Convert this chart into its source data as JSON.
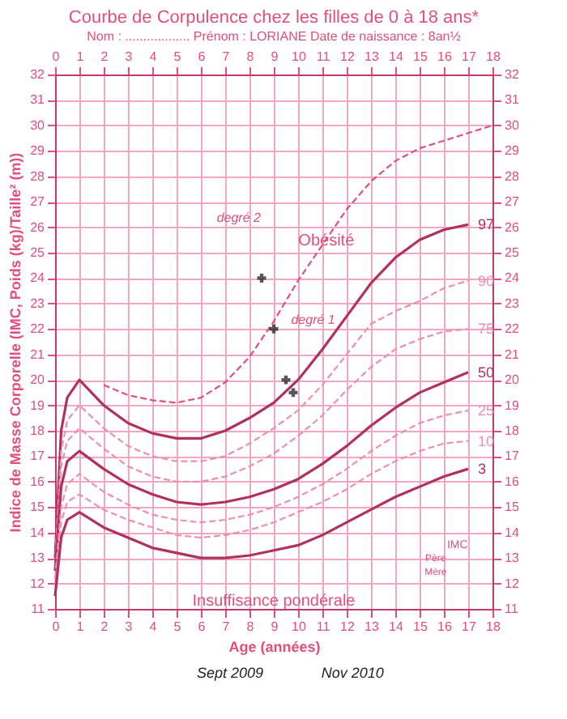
{
  "chart_data": {
    "type": "line",
    "title": "Courbe de Corpulence chez les filles de 0 à 18 ans*",
    "subtitle": "Nom : ..................  Prénom : LORIANE  Date de naissance : 8an½",
    "xlabel": "Age (années)",
    "ylabel": "Indice de Masse Corporelle (IMC, Poids (kg)/Taille² (m))",
    "xlim": [
      0,
      18
    ],
    "ylim": [
      11,
      32
    ],
    "xticks": [
      0,
      1,
      2,
      3,
      4,
      5,
      6,
      7,
      8,
      9,
      10,
      11,
      12,
      13,
      14,
      15,
      16,
      17,
      18
    ],
    "x2lim": [
      0,
      18
    ],
    "x2ticks": [
      0,
      1,
      2,
      3,
      4,
      5,
      6,
      7,
      8,
      9,
      10,
      11,
      12,
      13,
      14,
      15,
      16,
      17,
      18
    ],
    "yticks": [
      11,
      12,
      13,
      14,
      15,
      16,
      17,
      18,
      19,
      20,
      21,
      22,
      23,
      24,
      25,
      26,
      27,
      28,
      29,
      30,
      31,
      32
    ],
    "y2lim": [
      11,
      32
    ],
    "y2ticks": [
      11,
      12,
      13,
      14,
      15,
      16,
      17,
      18,
      19,
      20,
      21,
      22,
      23,
      24,
      25,
      26,
      27,
      28,
      29,
      30,
      31,
      32
    ],
    "grid": true,
    "series": [
      {
        "name": "97",
        "color": "#b03060",
        "line_style": "solid",
        "x": [
          0,
          0.25,
          0.5,
          1,
          2,
          3,
          4,
          5,
          6,
          7,
          8,
          9,
          10,
          11,
          12,
          13,
          14,
          15,
          16,
          17
        ],
        "values": [
          13,
          18,
          19.3,
          20,
          19,
          18.3,
          17.9,
          17.7,
          17.7,
          18,
          18.5,
          19.1,
          20,
          21.2,
          22.5,
          23.8,
          24.8,
          25.5,
          25.9,
          26.1
        ]
      },
      {
        "name": "90",
        "color": "#ec8fb0",
        "line_style": "dashed",
        "x": [
          0,
          0.25,
          0.5,
          1,
          2,
          3,
          4,
          5,
          6,
          7,
          8,
          9,
          10,
          11,
          12,
          13,
          14,
          15,
          16,
          17
        ],
        "values": [
          12.8,
          17.2,
          18.4,
          19,
          18.1,
          17.4,
          17,
          16.8,
          16.8,
          17,
          17.5,
          18.1,
          18.8,
          19.8,
          21,
          22.2,
          22.7,
          23.1,
          23.6,
          23.9
        ]
      },
      {
        "name": "75",
        "color": "#ec8fb0",
        "line_style": "dashed",
        "x": [
          0,
          0.25,
          0.5,
          1,
          2,
          3,
          4,
          5,
          6,
          7,
          8,
          9,
          10,
          11,
          12,
          13,
          14,
          15,
          16,
          17
        ],
        "values": [
          12.7,
          16.6,
          17.6,
          18.1,
          17.3,
          16.6,
          16.2,
          16,
          16,
          16.2,
          16.6,
          17.1,
          17.8,
          18.6,
          19.6,
          20.5,
          21.2,
          21.6,
          21.9,
          22
        ]
      },
      {
        "name": "50",
        "color": "#b03060",
        "line_style": "solid",
        "x": [
          0,
          0.25,
          0.5,
          1,
          2,
          3,
          4,
          5,
          6,
          7,
          8,
          9,
          10,
          11,
          12,
          13,
          14,
          15,
          16,
          17
        ],
        "values": [
          12.5,
          15.8,
          16.8,
          17.2,
          16.5,
          15.9,
          15.5,
          15.2,
          15.1,
          15.2,
          15.4,
          15.7,
          16.1,
          16.7,
          17.4,
          18.2,
          18.9,
          19.5,
          19.9,
          20.3
        ]
      },
      {
        "name": "25",
        "color": "#ec8fb0",
        "line_style": "dashed",
        "x": [
          0,
          0.25,
          0.5,
          1,
          2,
          3,
          4,
          5,
          6,
          7,
          8,
          9,
          10,
          11,
          12,
          13,
          14,
          15,
          16,
          17
        ],
        "values": [
          12.2,
          15,
          15.9,
          16.3,
          15.6,
          15.1,
          14.7,
          14.5,
          14.4,
          14.5,
          14.7,
          15,
          15.4,
          15.9,
          16.5,
          17.2,
          17.8,
          18.3,
          18.6,
          18.8
        ]
      },
      {
        "name": "10",
        "color": "#ec8fb0",
        "line_style": "dashed",
        "x": [
          0,
          0.25,
          0.5,
          1,
          2,
          3,
          4,
          5,
          6,
          7,
          8,
          9,
          10,
          11,
          12,
          13,
          14,
          15,
          16,
          17
        ],
        "values": [
          11.9,
          14.4,
          15.2,
          15.5,
          14.9,
          14.5,
          14.2,
          13.9,
          13.8,
          13.9,
          14.1,
          14.4,
          14.8,
          15.2,
          15.7,
          16.3,
          16.8,
          17.2,
          17.5,
          17.6
        ]
      },
      {
        "name": "3",
        "color": "#b03060",
        "line_style": "solid",
        "x": [
          0,
          0.25,
          0.5,
          1,
          2,
          3,
          4,
          5,
          6,
          7,
          8,
          9,
          10,
          11,
          12,
          13,
          14,
          15,
          16,
          17
        ],
        "values": [
          11.5,
          13.8,
          14.5,
          14.8,
          14.2,
          13.8,
          13.4,
          13.2,
          13,
          13,
          13.1,
          13.3,
          13.5,
          13.9,
          14.4,
          14.9,
          15.4,
          15.8,
          16.2,
          16.5
        ]
      },
      {
        "color": "#e0507a",
        "line_style": "dashed",
        "x": [
          2,
          3,
          4,
          5,
          6,
          7,
          8,
          9,
          10,
          11,
          12,
          13,
          14,
          15,
          16,
          17,
          18
        ],
        "values": [
          19.8,
          19.4,
          19.2,
          19.1,
          19.3,
          19.9,
          20.9,
          22.3,
          23.9,
          25.3,
          26.7,
          27.8,
          28.6,
          29.1,
          29.4,
          29.7,
          30
        ]
      },
      {
        "type": "scatter",
        "marker": "cross",
        "color": "#111111",
        "x": [
          8.5,
          9,
          9.5,
          9.8
        ],
        "values": [
          24,
          22,
          20,
          19.5
        ]
      }
    ],
    "annotations": [
      "degré 2",
      "degré 1",
      "Obésité",
      "Insuffisance pondérale",
      "IMC",
      "Père",
      "Mère",
      "Sept 2009",
      "Nov 2010"
    ]
  }
}
